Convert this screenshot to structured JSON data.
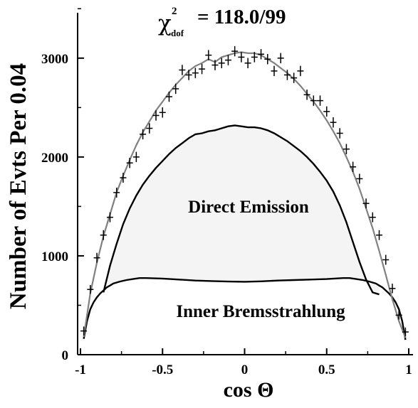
{
  "chart_data": {
    "type": "line",
    "title": "",
    "xlabel": "cos Θ",
    "ylabel": "Number of Evts Per 0.04",
    "xlim": [
      -1,
      1
    ],
    "ylim": [
      0,
      3550
    ],
    "grid": false,
    "x_ticks": [
      -1,
      -0.5,
      0,
      0.5,
      1
    ],
    "x_tick_labels": [
      "-1",
      "-0.5",
      "0",
      "0.5",
      "1"
    ],
    "y_ticks": [
      0,
      1000,
      2000,
      3000
    ],
    "y_tick_labels": [
      "0",
      "1000",
      "2000",
      "3000"
    ],
    "fit_statistic": {
      "symbol": "χ",
      "superscript": "2",
      "subscript": "dof",
      "value": "= 118.0/99"
    },
    "annotations": [
      "Direct Emission",
      "Inner Bremsstrahlung"
    ],
    "series": [
      {
        "role": "data_points_with_errors",
        "color": "#000000",
        "points": [
          [
            -0.98,
            240,
            45
          ],
          [
            -0.94,
            660,
            45
          ],
          [
            -0.9,
            980,
            50
          ],
          [
            -0.86,
            1210,
            50
          ],
          [
            -0.82,
            1390,
            50
          ],
          [
            -0.78,
            1640,
            50
          ],
          [
            -0.74,
            1790,
            50
          ],
          [
            -0.7,
            1940,
            52
          ],
          [
            -0.66,
            2000,
            52
          ],
          [
            -0.62,
            2230,
            52
          ],
          [
            -0.58,
            2290,
            52
          ],
          [
            -0.54,
            2420,
            52
          ],
          [
            -0.5,
            2450,
            52
          ],
          [
            -0.46,
            2610,
            52
          ],
          [
            -0.42,
            2690,
            52
          ],
          [
            -0.38,
            2880,
            52
          ],
          [
            -0.34,
            2830,
            52
          ],
          [
            -0.3,
            2850,
            52
          ],
          [
            -0.26,
            2890,
            52
          ],
          [
            -0.22,
            3030,
            52
          ],
          [
            -0.18,
            2930,
            52
          ],
          [
            -0.14,
            2950,
            52
          ],
          [
            -0.1,
            2980,
            52
          ],
          [
            -0.06,
            3070,
            52
          ],
          [
            -0.02,
            3010,
            52
          ],
          [
            0.02,
            2950,
            52
          ],
          [
            0.06,
            3010,
            52
          ],
          [
            0.1,
            3040,
            52
          ],
          [
            0.14,
            2990,
            52
          ],
          [
            0.18,
            2870,
            52
          ],
          [
            0.22,
            3000,
            52
          ],
          [
            0.26,
            2830,
            52
          ],
          [
            0.3,
            2800,
            52
          ],
          [
            0.34,
            2870,
            52
          ],
          [
            0.38,
            2630,
            52
          ],
          [
            0.42,
            2570,
            52
          ],
          [
            0.46,
            2570,
            52
          ],
          [
            0.5,
            2460,
            52
          ],
          [
            0.54,
            2350,
            52
          ],
          [
            0.58,
            2240,
            52
          ],
          [
            0.62,
            2080,
            52
          ],
          [
            0.66,
            1900,
            52
          ],
          [
            0.7,
            1780,
            50
          ],
          [
            0.74,
            1530,
            50
          ],
          [
            0.78,
            1390,
            50
          ],
          [
            0.82,
            1210,
            50
          ],
          [
            0.86,
            960,
            50
          ],
          [
            0.9,
            670,
            48
          ],
          [
            0.94,
            400,
            45
          ],
          [
            0.98,
            230,
            45
          ]
        ]
      },
      {
        "role": "total_fit",
        "color": "#808080",
        "x": [
          -0.98,
          -0.94,
          -0.9,
          -0.86,
          -0.82,
          -0.78,
          -0.74,
          -0.7,
          -0.66,
          -0.62,
          -0.58,
          -0.54,
          -0.5,
          -0.46,
          -0.42,
          -0.38,
          -0.34,
          -0.3,
          -0.26,
          -0.22,
          -0.18,
          -0.14,
          -0.1,
          -0.06,
          -0.02,
          0.02,
          0.06,
          0.1,
          0.14,
          0.18,
          0.22,
          0.26,
          0.3,
          0.34,
          0.38,
          0.42,
          0.46,
          0.5,
          0.54,
          0.58,
          0.62,
          0.66,
          0.7,
          0.74,
          0.78,
          0.82,
          0.86,
          0.9,
          0.94,
          0.98
        ],
        "y": [
          180,
          620,
          930,
          1200,
          1420,
          1640,
          1810,
          1970,
          2120,
          2250,
          2360,
          2470,
          2560,
          2650,
          2730,
          2800,
          2870,
          2920,
          2950,
          2990,
          2960,
          3010,
          3030,
          3050,
          3060,
          3050,
          3050,
          3030,
          2990,
          2950,
          2900,
          2850,
          2790,
          2720,
          2640,
          2560,
          2470,
          2370,
          2260,
          2140,
          2000,
          1850,
          1680,
          1480,
          1280,
          1050,
          810,
          560,
          340,
          170
        ]
      },
      {
        "role": "direct_emission",
        "color": "#000000",
        "x": [
          -0.86,
          -0.82,
          -0.78,
          -0.74,
          -0.7,
          -0.66,
          -0.62,
          -0.58,
          -0.54,
          -0.5,
          -0.46,
          -0.42,
          -0.38,
          -0.34,
          -0.3,
          -0.26,
          -0.22,
          -0.18,
          -0.14,
          -0.1,
          -0.06,
          -0.02,
          0.02,
          0.06,
          0.1,
          0.14,
          0.18,
          0.22,
          0.26,
          0.3,
          0.34,
          0.38,
          0.42,
          0.46,
          0.5,
          0.54,
          0.58,
          0.62,
          0.66,
          0.7,
          0.74,
          0.78,
          0.82
        ],
        "y": [
          630,
          900,
          1120,
          1320,
          1480,
          1610,
          1720,
          1810,
          1890,
          1960,
          2030,
          2090,
          2140,
          2190,
          2230,
          2240,
          2260,
          2270,
          2290,
          2310,
          2320,
          2310,
          2300,
          2300,
          2290,
          2270,
          2240,
          2200,
          2160,
          2110,
          2060,
          2000,
          1930,
          1850,
          1760,
          1650,
          1510,
          1340,
          1140,
          940,
          760,
          630,
          610
        ]
      },
      {
        "role": "inner_bremsstrahlung",
        "color": "#000000",
        "x": [
          -0.98,
          -0.96,
          -0.94,
          -0.92,
          -0.9,
          -0.88,
          -0.86,
          -0.84,
          -0.82,
          -0.8,
          -0.76,
          -0.72,
          -0.68,
          -0.64,
          -0.6,
          -0.5,
          -0.4,
          -0.3,
          -0.2,
          -0.1,
          0.0,
          0.1,
          0.2,
          0.3,
          0.4,
          0.5,
          0.6,
          0.64,
          0.68,
          0.72,
          0.76,
          0.8,
          0.82,
          0.84,
          0.86,
          0.88,
          0.9,
          0.92,
          0.94,
          0.96,
          0.98
        ],
        "y": [
          160,
          340,
          460,
          530,
          580,
          620,
          650,
          680,
          700,
          720,
          740,
          755,
          765,
          775,
          775,
          770,
          760,
          750,
          745,
          740,
          738,
          742,
          750,
          755,
          760,
          765,
          775,
          775,
          765,
          755,
          740,
          720,
          700,
          680,
          650,
          620,
          580,
          530,
          460,
          340,
          150
        ]
      }
    ]
  }
}
